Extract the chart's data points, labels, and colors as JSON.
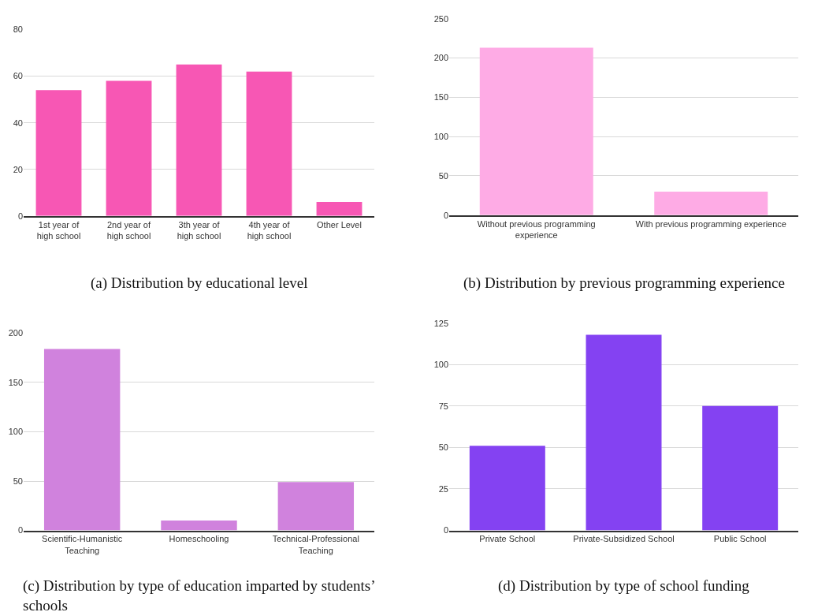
{
  "chart_data": [
    {
      "type": "bar",
      "title": "(a) Distribution by educational level",
      "categories": [
        "1st year of high school",
        "2nd year of high school",
        "3th year of high school",
        "4th year of high school",
        "Other Level"
      ],
      "values": [
        54,
        58,
        65,
        62,
        6
      ],
      "color": "#f757b4",
      "ylim": [
        0,
        80
      ],
      "yticks": [
        0,
        20,
        40,
        60,
        80
      ],
      "grid": "y"
    },
    {
      "type": "bar",
      "title": "(b) Distribution by previous programming experience",
      "categories": [
        "Without previous programming experience",
        "With previous programming experience"
      ],
      "values": [
        213,
        30
      ],
      "color": "#feabe5",
      "ylim": [
        0,
        250
      ],
      "yticks": [
        0,
        50,
        100,
        150,
        200,
        250
      ],
      "grid": "y"
    },
    {
      "type": "bar",
      "title": "(c) Distribution by type of education imparted by students’ schools",
      "categories": [
        "Scientific-Humanistic Teaching",
        "Homeschooling",
        "Technical-Professional Teaching"
      ],
      "values": [
        184,
        10,
        49
      ],
      "color": "#d082dd",
      "ylim": [
        0,
        200
      ],
      "yticks": [
        0,
        50,
        100,
        150,
        200
      ],
      "grid": "y"
    },
    {
      "type": "bar",
      "title": "(d) Distribution by type of school funding",
      "categories": [
        "Private School",
        "Private-Subsidized School",
        "Public School"
      ],
      "values": [
        51,
        118,
        75
      ],
      "color": "#8442f2",
      "ylim": [
        0,
        125
      ],
      "yticks": [
        0,
        25,
        50,
        75,
        100,
        125
      ],
      "grid": "y"
    }
  ]
}
